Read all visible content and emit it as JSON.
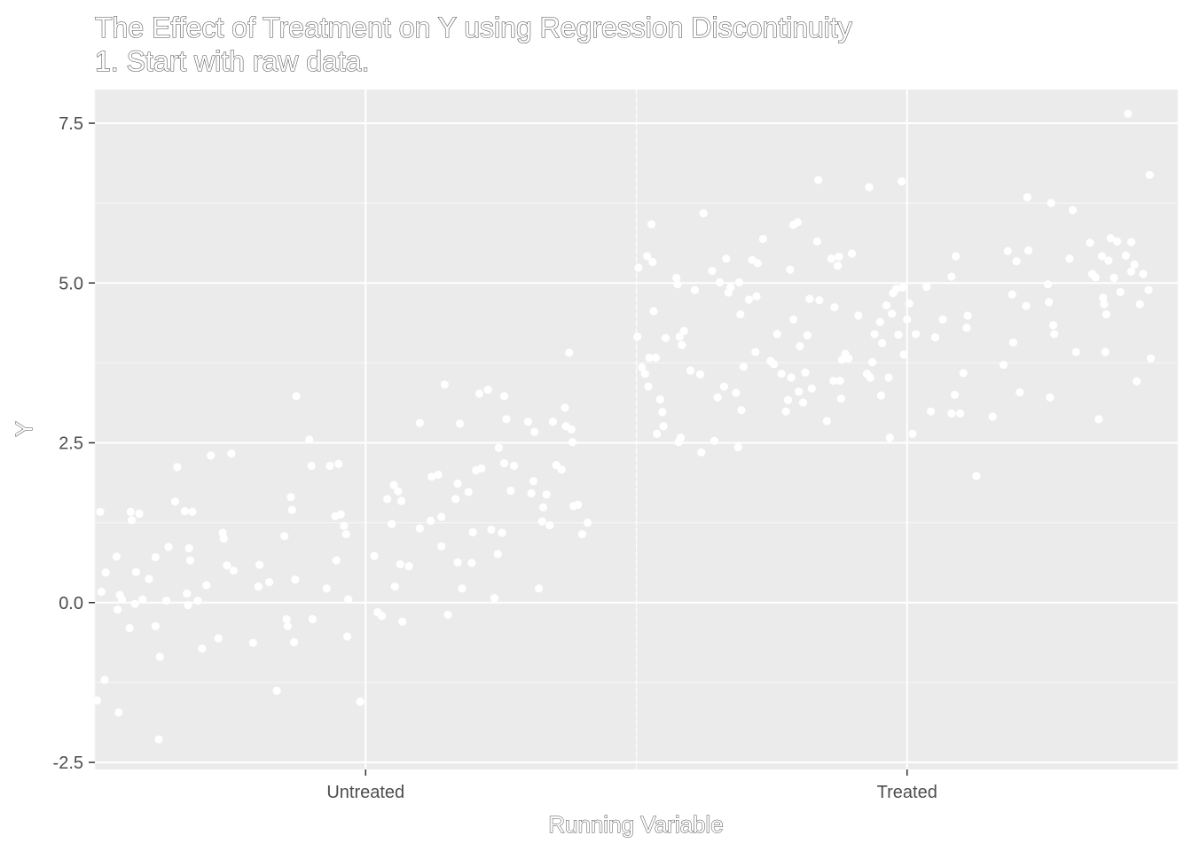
{
  "chart_data": {
    "type": "scatter",
    "title": "The Effect of Treatment on Y using Regression Discontinuity",
    "subtitle": "1. Start with raw data.",
    "xlabel": "Running Variable",
    "ylabel": "Y",
    "xlim": [
      0,
      1
    ],
    "ylim": [
      -2.6,
      8.0
    ],
    "x_tick_values": [
      0.25,
      0.75
    ],
    "x_ticks": [
      "Untreated",
      "Treated"
    ],
    "y_ticks": [
      -2.5,
      0.0,
      2.5,
      5.0,
      7.5
    ],
    "y_tick_labels": [
      "-2.5",
      "0.0",
      "2.5",
      "5.0",
      "7.5"
    ],
    "cutoff": 0.5,
    "grid": true,
    "colors": {
      "panel_background": "#ebebeb",
      "grid_major": "#ffffff",
      "grid_minor": "#f5f5f5",
      "points": "#ffffff"
    },
    "series": [
      {
        "points": [
          [
            0.002,
            -1.53
          ],
          [
            0.005,
            1.42
          ],
          [
            0.006,
            0.17
          ],
          [
            0.009,
            -1.21
          ],
          [
            0.01,
            0.47
          ],
          [
            0.02,
            0.72
          ],
          [
            0.021,
            -0.11
          ],
          [
            0.022,
            -1.72
          ],
          [
            0.023,
            0.12
          ],
          [
            0.025,
            0.05
          ],
          [
            0.032,
            -0.4
          ],
          [
            0.033,
            1.42
          ],
          [
            0.034,
            1.29
          ],
          [
            0.037,
            -0.02
          ],
          [
            0.038,
            0.48
          ],
          [
            0.041,
            1.39
          ],
          [
            0.044,
            0.05
          ],
          [
            0.05,
            0.37
          ],
          [
            0.056,
            -0.37
          ],
          [
            0.056,
            0.71
          ],
          [
            0.059,
            -2.14
          ],
          [
            0.06,
            -0.85
          ],
          [
            0.066,
            0.03
          ],
          [
            0.068,
            0.87
          ],
          [
            0.074,
            1.58
          ],
          [
            0.076,
            2.12
          ],
          [
            0.083,
            1.43
          ],
          [
            0.085,
            0.14
          ],
          [
            0.086,
            -0.04
          ],
          [
            0.087,
            0.85
          ],
          [
            0.088,
            0.66
          ],
          [
            0.09,
            1.42
          ],
          [
            0.095,
            0.03
          ],
          [
            0.099,
            -0.72
          ],
          [
            0.103,
            0.27
          ],
          [
            0.107,
            2.3
          ],
          [
            0.114,
            -0.56
          ],
          [
            0.118,
            1.09
          ],
          [
            0.119,
            1.0
          ],
          [
            0.122,
            0.58
          ],
          [
            0.126,
            2.33
          ],
          [
            0.128,
            0.5
          ],
          [
            0.146,
            -0.63
          ],
          [
            0.151,
            0.25
          ],
          [
            0.152,
            0.59
          ],
          [
            0.161,
            0.32
          ],
          [
            0.168,
            -1.38
          ],
          [
            0.175,
            1.04
          ],
          [
            0.177,
            -0.26
          ],
          [
            0.178,
            -0.37
          ],
          [
            0.181,
            1.65
          ],
          [
            0.182,
            1.45
          ],
          [
            0.184,
            -0.62
          ],
          [
            0.185,
            0.36
          ],
          [
            0.186,
            3.23
          ],
          [
            0.198,
            2.55
          ],
          [
            0.2,
            2.14
          ],
          [
            0.201,
            -0.26
          ],
          [
            0.214,
            0.22
          ],
          [
            0.217,
            2.14
          ],
          [
            0.222,
            1.35
          ],
          [
            0.223,
            0.66
          ],
          [
            0.225,
            2.17
          ],
          [
            0.227,
            1.38
          ],
          [
            0.23,
            1.2
          ],
          [
            0.232,
            1.07
          ],
          [
            0.233,
            -0.53
          ],
          [
            0.234,
            0.05
          ],
          [
            0.245,
            -1.55
          ],
          [
            0.258,
            0.73
          ],
          [
            0.261,
            -0.15
          ],
          [
            0.265,
            -0.21
          ],
          [
            0.27,
            1.62
          ],
          [
            0.274,
            1.23
          ],
          [
            0.276,
            1.84
          ],
          [
            0.277,
            0.25
          ],
          [
            0.28,
            1.74
          ],
          [
            0.282,
            0.6
          ],
          [
            0.283,
            1.59
          ],
          [
            0.284,
            -0.3
          ],
          [
            0.29,
            0.57
          ],
          [
            0.3,
            2.81
          ],
          [
            0.3,
            1.16
          ],
          [
            0.31,
            1.28
          ],
          [
            0.311,
            1.97
          ],
          [
            0.317,
            2.0
          ],
          [
            0.32,
            0.88
          ],
          [
            0.32,
            1.34
          ],
          [
            0.323,
            3.41
          ],
          [
            0.326,
            -0.19
          ],
          [
            0.333,
            1.62
          ],
          [
            0.335,
            1.86
          ],
          [
            0.335,
            0.63
          ],
          [
            0.337,
            2.8
          ],
          [
            0.339,
            0.22
          ],
          [
            0.345,
            1.73
          ],
          [
            0.348,
            0.62
          ],
          [
            0.349,
            1.1
          ],
          [
            0.352,
            2.07
          ],
          [
            0.355,
            3.27
          ],
          [
            0.357,
            2.1
          ],
          [
            0.363,
            3.33
          ],
          [
            0.366,
            1.14
          ],
          [
            0.369,
            0.07
          ],
          [
            0.372,
            0.76
          ],
          [
            0.373,
            2.42
          ],
          [
            0.376,
            1.09
          ],
          [
            0.378,
            3.23
          ],
          [
            0.378,
            2.18
          ],
          [
            0.38,
            2.87
          ],
          [
            0.384,
            1.75
          ],
          [
            0.387,
            2.14
          ],
          [
            0.4,
            2.83
          ],
          [
            0.403,
            1.71
          ],
          [
            0.405,
            1.9
          ],
          [
            0.406,
            2.67
          ],
          [
            0.41,
            0.22
          ],
          [
            0.413,
            1.27
          ],
          [
            0.414,
            1.49
          ],
          [
            0.417,
            1.69
          ],
          [
            0.42,
            1.21
          ],
          [
            0.423,
            2.83
          ],
          [
            0.426,
            2.15
          ],
          [
            0.431,
            2.08
          ],
          [
            0.434,
            3.05
          ],
          [
            0.435,
            2.76
          ],
          [
            0.438,
            3.91
          ],
          [
            0.44,
            2.71
          ],
          [
            0.441,
            2.51
          ],
          [
            0.442,
            1.51
          ],
          [
            0.446,
            1.53
          ],
          [
            0.45,
            1.07
          ],
          [
            0.455,
            1.25
          ]
        ]
      },
      {
        "points": [
          [
            0.501,
            4.16
          ],
          [
            0.502,
            5.24
          ],
          [
            0.505,
            3.68
          ],
          [
            0.508,
            3.58
          ],
          [
            0.51,
            5.42
          ],
          [
            0.511,
            3.38
          ],
          [
            0.512,
            3.83
          ],
          [
            0.514,
            5.92
          ],
          [
            0.515,
            5.33
          ],
          [
            0.516,
            4.56
          ],
          [
            0.518,
            3.83
          ],
          [
            0.519,
            2.64
          ],
          [
            0.522,
            3.18
          ],
          [
            0.524,
            2.98
          ],
          [
            0.525,
            2.76
          ],
          [
            0.527,
            4.14
          ],
          [
            0.537,
            5.08
          ],
          [
            0.538,
            4.98
          ],
          [
            0.539,
            2.51
          ],
          [
            0.54,
            4.16
          ],
          [
            0.541,
            2.58
          ],
          [
            0.542,
            4.03
          ],
          [
            0.544,
            4.25
          ],
          [
            0.55,
            3.63
          ],
          [
            0.554,
            4.89
          ],
          [
            0.559,
            3.57
          ],
          [
            0.56,
            2.35
          ],
          [
            0.562,
            6.09
          ],
          [
            0.57,
            5.19
          ],
          [
            0.572,
            2.53
          ],
          [
            0.575,
            3.21
          ],
          [
            0.577,
            5.01
          ],
          [
            0.581,
            3.38
          ],
          [
            0.583,
            5.38
          ],
          [
            0.585,
            4.85
          ],
          [
            0.587,
            4.93
          ],
          [
            0.592,
            3.28
          ],
          [
            0.594,
            2.43
          ],
          [
            0.595,
            5.01
          ],
          [
            0.596,
            4.51
          ],
          [
            0.597,
            3.01
          ],
          [
            0.599,
            3.69
          ],
          [
            0.604,
            4.74
          ],
          [
            0.607,
            5.36
          ],
          [
            0.61,
            3.92
          ],
          [
            0.611,
            4.79
          ],
          [
            0.612,
            5.31
          ],
          [
            0.617,
            5.69
          ],
          [
            0.624,
            3.78
          ],
          [
            0.627,
            3.73
          ],
          [
            0.63,
            4.2
          ],
          [
            0.634,
            3.58
          ],
          [
            0.638,
            2.99
          ],
          [
            0.64,
            3.17
          ],
          [
            0.642,
            5.21
          ],
          [
            0.643,
            3.52
          ],
          [
            0.645,
            4.43
          ],
          [
            0.645,
            5.91
          ],
          [
            0.649,
            5.95
          ],
          [
            0.65,
            3.3
          ],
          [
            0.651,
            4.01
          ],
          [
            0.654,
            3.13
          ],
          [
            0.656,
            3.6
          ],
          [
            0.658,
            4.18
          ],
          [
            0.66,
            4.75
          ],
          [
            0.662,
            3.35
          ],
          [
            0.667,
            5.65
          ],
          [
            0.668,
            6.61
          ],
          [
            0.669,
            4.73
          ],
          [
            0.676,
            2.84
          ],
          [
            0.68,
            5.38
          ],
          [
            0.682,
            3.47
          ],
          [
            0.683,
            4.62
          ],
          [
            0.686,
            5.27
          ],
          [
            0.687,
            5.41
          ],
          [
            0.688,
            3.47
          ],
          [
            0.689,
            3.19
          ],
          [
            0.69,
            3.8
          ],
          [
            0.693,
            3.89
          ],
          [
            0.696,
            3.82
          ],
          [
            0.699,
            5.46
          ],
          [
            0.705,
            4.49
          ],
          [
            0.713,
            3.58
          ],
          [
            0.715,
            6.5
          ],
          [
            0.716,
            3.52
          ],
          [
            0.718,
            3.76
          ],
          [
            0.72,
            4.2
          ],
          [
            0.725,
            4.39
          ],
          [
            0.726,
            3.24
          ],
          [
            0.727,
            4.06
          ],
          [
            0.731,
            4.65
          ],
          [
            0.733,
            3.52
          ],
          [
            0.734,
            2.58
          ],
          [
            0.736,
            4.52
          ],
          [
            0.737,
            4.84
          ],
          [
            0.74,
            4.91
          ],
          [
            0.742,
            4.19
          ],
          [
            0.745,
            6.59
          ],
          [
            0.746,
            4.93
          ],
          [
            0.747,
            3.88
          ],
          [
            0.75,
            4.43
          ],
          [
            0.752,
            4.68
          ],
          [
            0.755,
            2.64
          ],
          [
            0.758,
            4.2
          ],
          [
            0.768,
            4.94
          ],
          [
            0.772,
            2.99
          ],
          [
            0.776,
            4.15
          ],
          [
            0.783,
            4.43
          ],
          [
            0.791,
            5.1
          ],
          [
            0.791,
            2.96
          ],
          [
            0.794,
            3.25
          ],
          [
            0.795,
            5.42
          ],
          [
            0.799,
            2.96
          ],
          [
            0.802,
            3.59
          ],
          [
            0.805,
            4.3
          ],
          [
            0.806,
            4.49
          ],
          [
            0.814,
            1.98
          ],
          [
            0.829,
            2.91
          ],
          [
            0.839,
            3.72
          ],
          [
            0.843,
            5.5
          ],
          [
            0.847,
            4.82
          ],
          [
            0.848,
            4.07
          ],
          [
            0.851,
            5.34
          ],
          [
            0.854,
            3.29
          ],
          [
            0.86,
            4.64
          ],
          [
            0.861,
            6.34
          ],
          [
            0.862,
            5.51
          ],
          [
            0.88,
            4.98
          ],
          [
            0.881,
            4.7
          ],
          [
            0.882,
            3.21
          ],
          [
            0.883,
            6.25
          ],
          [
            0.885,
            4.34
          ],
          [
            0.886,
            4.2
          ],
          [
            0.9,
            5.38
          ],
          [
            0.903,
            6.14
          ],
          [
            0.906,
            3.92
          ],
          [
            0.919,
            5.63
          ],
          [
            0.921,
            5.14
          ],
          [
            0.924,
            5.09
          ],
          [
            0.927,
            2.87
          ],
          [
            0.93,
            5.42
          ],
          [
            0.931,
            4.77
          ],
          [
            0.932,
            4.67
          ],
          [
            0.933,
            3.92
          ],
          [
            0.934,
            4.51
          ],
          [
            0.936,
            5.35
          ],
          [
            0.938,
            5.7
          ],
          [
            0.941,
            5.08
          ],
          [
            0.944,
            5.65
          ],
          [
            0.947,
            4.86
          ],
          [
            0.952,
            5.43
          ],
          [
            0.954,
            7.65
          ],
          [
            0.957,
            5.18
          ],
          [
            0.957,
            5.64
          ],
          [
            0.96,
            5.29
          ],
          [
            0.962,
            3.46
          ],
          [
            0.965,
            4.67
          ],
          [
            0.968,
            5.14
          ],
          [
            0.973,
            4.89
          ],
          [
            0.974,
            6.69
          ],
          [
            0.975,
            3.82
          ]
        ]
      }
    ]
  }
}
